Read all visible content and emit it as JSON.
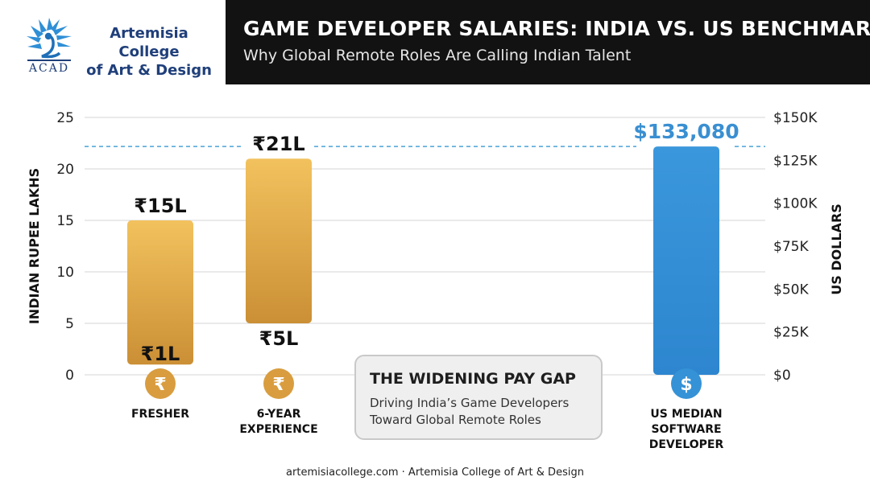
{
  "brand": {
    "logo_line1": "Artemisia College",
    "logo_line2": "of Art & Design",
    "logo_acronym": "ACAD",
    "colors": {
      "navy": "#1f3f7a",
      "logo_blue": "#2f8fd6"
    }
  },
  "header": {
    "title": "GAME DEVELOPER SALARIES: INDIA VS. US BENCHMARK",
    "subtitle": "Why Global Remote Roles Are Calling Indian Talent"
  },
  "chart_data": {
    "type": "bar",
    "subtype": "floating-range bar with dual y-axes",
    "y_left": {
      "label": "INDIAN RUPEE LAKHS",
      "ticks": [
        0,
        5,
        10,
        15,
        20,
        25
      ],
      "tick_labels": [
        "0",
        "5",
        "10",
        "15",
        "20",
        "25"
      ],
      "range": [
        0,
        25
      ]
    },
    "y_right": {
      "label": "US DOLLARS",
      "ticks": [
        0,
        25000,
        50000,
        75000,
        100000,
        125000,
        150000
      ],
      "tick_labels": [
        "$0",
        "$25K",
        "$50K",
        "$75K",
        "$100K",
        "$125K",
        "$150K"
      ],
      "range": [
        0,
        150000
      ]
    },
    "grid": true,
    "categories": [
      {
        "label": "FRESHER",
        "lines": [
          "FRESHER"
        ],
        "axis": "left",
        "low": 1,
        "high": 15,
        "low_label": "₹1L",
        "high_label": "₹15L",
        "icon": "rupee-icon",
        "color_top": "#f2c25e",
        "color_bottom": "#cb8f35"
      },
      {
        "label": "6-YEAR EXPERIENCE",
        "lines": [
          "6-YEAR",
          "EXPERIENCE"
        ],
        "axis": "left",
        "low": 5,
        "high": 21,
        "low_label": "₹5L",
        "high_label": "₹21L",
        "icon": "rupee-icon",
        "color_top": "#f2c25e",
        "color_bottom": "#cb8f35"
      },
      {
        "label": "US MEDIAN SOFTWARE DEVELOPER",
        "lines": [
          "US MEDIAN",
          "SOFTWARE",
          "DEVELOPER"
        ],
        "axis": "right",
        "low": 0,
        "high": 133080,
        "low_label": "",
        "high_label": "$133,080",
        "icon": "dollar-icon",
        "color_top": "#3b97dc",
        "color_bottom": "#2d86cf"
      }
    ],
    "reference_line": {
      "axis": "right",
      "value": 133080,
      "style": "dashed",
      "color": "#4aa3d8"
    }
  },
  "callout": {
    "title": "THE WIDENING PAY GAP",
    "body": "Driving India’s Game Developers Toward Global Remote Roles"
  },
  "footer": {
    "text": "artemisiacollege.com · Artemisia College of Art & Design"
  }
}
